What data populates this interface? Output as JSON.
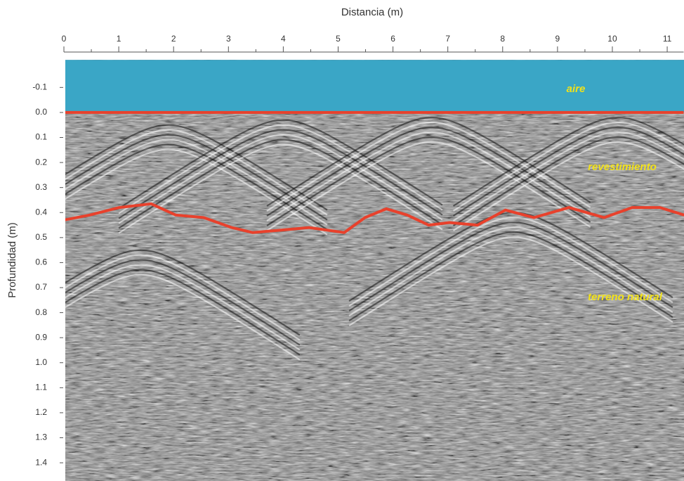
{
  "chart_data": {
    "type": "radargram",
    "x_label": "Distancia (m)",
    "y_label": "Profundidad (m)",
    "xlim": [
      0,
      11.3
    ],
    "ylim": [
      -0.21,
      1.47
    ],
    "y_inverted": true,
    "xticks": [
      0,
      1,
      2,
      3,
      4,
      5,
      6,
      7,
      8,
      9,
      10,
      11
    ],
    "xminorticks": [
      0.5,
      1.5,
      2.5,
      3.5,
      4.5,
      5.5,
      6.5,
      7.5,
      8.5,
      9.5,
      10.5
    ],
    "yticks": [
      -0.1,
      {
        "value": 0,
        "label": "0.0"
      },
      0.1,
      0.2,
      0.3,
      0.4,
      0.5,
      0.6,
      0.7,
      0.8,
      0.9,
      {
        "value": 1,
        "label": "1.0"
      },
      1.1,
      1.2,
      1.3,
      1.4
    ],
    "lines": [
      {
        "color": "#e8412c",
        "x": [
          0,
          11.3
        ],
        "values": [
          0,
          0
        ]
      },
      {
        "color": "#e8412c",
        "x": [
          0,
          0.47,
          1.01,
          1.59,
          2.04,
          2.55,
          3.06,
          3.44,
          3.96,
          4.47,
          5.11,
          5.49,
          5.88,
          6.26,
          6.65,
          7.03,
          7.54,
          8.05,
          8.57,
          9.21,
          9.85,
          10.36,
          10.87,
          11.31
        ],
        "values": [
          0.43,
          0.41,
          0.38,
          0.365,
          0.41,
          0.42,
          0.46,
          0.48,
          0.47,
          0.46,
          0.48,
          0.42,
          0.385,
          0.41,
          0.45,
          0.44,
          0.45,
          0.39,
          0.42,
          0.38,
          0.42,
          0.38,
          0.38,
          0.41
        ]
      }
    ],
    "layers": [
      {
        "label": "aire",
        "color": "#3aa6c6"
      },
      {
        "label": "revestimiento"
      },
      {
        "label": "terreno natural"
      }
    ]
  }
}
